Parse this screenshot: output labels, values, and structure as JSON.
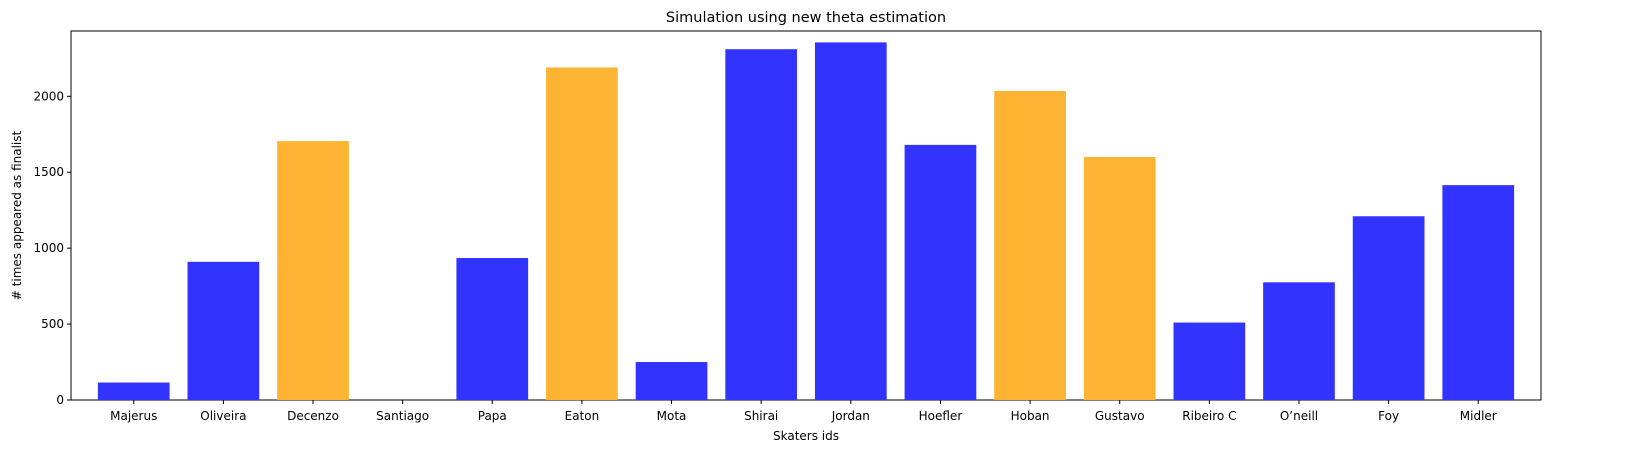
{
  "chart_data": {
    "type": "bar",
    "title": "Simulation using new theta estimation",
    "xlabel": "Skaters ids",
    "ylabel": "# times appeared as finalist",
    "categories": [
      "Majerus",
      "Oliveira",
      "Decenzo",
      "Santiago",
      "Papa",
      "Eaton",
      "Mota",
      "Shirai",
      "Jordan",
      "Hoefler",
      "Hoban",
      "Gustavo",
      "Ribeiro C",
      "O’neill",
      "Foy",
      "Midler"
    ],
    "values": [
      115,
      910,
      1705,
      0,
      935,
      2190,
      250,
      2310,
      2355,
      1680,
      2035,
      1600,
      510,
      775,
      1210,
      1415
    ],
    "bar_colors": [
      "#3333ff",
      "#3333ff",
      "#ffb333",
      "#3333ff",
      "#3333ff",
      "#ffb333",
      "#3333ff",
      "#3333ff",
      "#3333ff",
      "#3333ff",
      "#ffb333",
      "#ffb333",
      "#3333ff",
      "#3333ff",
      "#3333ff",
      "#3333ff"
    ],
    "ylim": [
      0,
      2430
    ],
    "yticks": [
      0,
      500,
      1000,
      1500,
      2000
    ],
    "grid": false,
    "legend": "none"
  }
}
